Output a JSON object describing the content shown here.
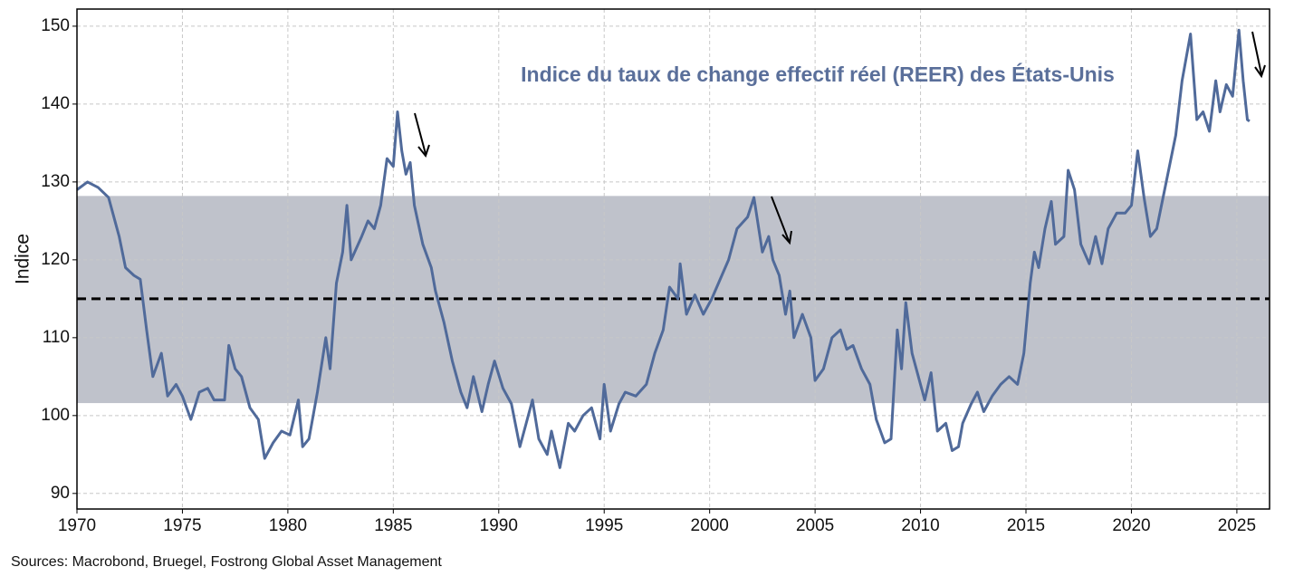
{
  "chart_data": {
    "type": "line",
    "title": "Indice du taux de change effectif réel (REER) des États-Unis",
    "y_label": "Indice",
    "source": "Sources: Macrobond, Bruegel, Fostrong Global Asset Management",
    "xlim": [
      1970,
      2026.55
    ],
    "xticks": [
      1970,
      1975,
      1980,
      1985,
      1990,
      1995,
      2000,
      2005,
      2010,
      2015,
      2020,
      2025
    ],
    "ylim": [
      88,
      152.2
    ],
    "yticks": [
      90,
      100,
      110,
      120,
      130,
      140,
      150
    ],
    "grid": true,
    "band": [
      101.6,
      128.2
    ],
    "band_color": "#bfc2cb",
    "reference_line": 115,
    "reference_color": "#000000",
    "series": [
      {
        "name": "REER",
        "color": "#506a9a",
        "x": [
          1970.0,
          1970.5,
          1971.0,
          1971.5,
          1972.0,
          1972.3,
          1972.7,
          1973.0,
          1973.3,
          1973.6,
          1974.0,
          1974.3,
          1974.7,
          1975.0,
          1975.4,
          1975.8,
          1976.2,
          1976.5,
          1977.0,
          1977.2,
          1977.5,
          1977.8,
          1978.2,
          1978.6,
          1978.9,
          1979.3,
          1979.7,
          1980.1,
          1980.5,
          1980.7,
          1981.0,
          1981.4,
          1981.8,
          1982.0,
          1982.3,
          1982.6,
          1982.8,
          1983.0,
          1983.5,
          1983.8,
          1984.1,
          1984.4,
          1984.7,
          1985.0,
          1985.2,
          1985.4,
          1985.6,
          1985.8,
          1986.0,
          1986.4,
          1986.8,
          1987.0,
          1987.4,
          1987.8,
          1988.2,
          1988.5,
          1988.8,
          1989.2,
          1989.5,
          1989.8,
          1990.2,
          1990.6,
          1991.0,
          1991.3,
          1991.6,
          1991.9,
          1992.3,
          1992.5,
          1992.9,
          1993.3,
          1993.6,
          1994.0,
          1994.4,
          1994.8,
          1995.0,
          1995.3,
          1995.7,
          1996.0,
          1996.5,
          1997.0,
          1997.4,
          1997.8,
          1998.1,
          1998.5,
          1998.6,
          1998.9,
          1999.3,
          1999.7,
          2000.1,
          2000.5,
          2000.9,
          2001.3,
          2001.8,
          2002.1,
          2002.5,
          2002.8,
          2003.0,
          2003.3,
          2003.6,
          2003.8,
          2004.0,
          2004.4,
          2004.8,
          2005.0,
          2005.4,
          2005.8,
          2006.2,
          2006.5,
          2006.8,
          2007.2,
          2007.6,
          2007.9,
          2008.3,
          2008.6,
          2008.9,
          2009.1,
          2009.3,
          2009.6,
          2009.9,
          2010.2,
          2010.5,
          2010.8,
          2011.2,
          2011.5,
          2011.8,
          2012.0,
          2012.4,
          2012.7,
          2013.0,
          2013.4,
          2013.8,
          2014.2,
          2014.6,
          2014.9,
          2015.2,
          2015.4,
          2015.6,
          2015.9,
          2016.2,
          2016.4,
          2016.8,
          2017.0,
          2017.3,
          2017.6,
          2018.0,
          2018.3,
          2018.6,
          2018.9,
          2019.3,
          2019.7,
          2020.0,
          2020.3,
          2020.6,
          2020.9,
          2021.2,
          2021.5,
          2021.8,
          2022.1,
          2022.4,
          2022.8,
          2023.1,
          2023.4,
          2023.7,
          2024.0,
          2024.2,
          2024.5,
          2024.8,
          2025.1,
          2025.3,
          2025.5,
          2025.6
        ],
        "values": [
          129,
          130,
          129.3,
          128,
          123,
          119,
          118,
          117.5,
          111,
          105,
          108,
          102.5,
          104,
          102.5,
          99.5,
          103,
          103.5,
          102,
          102,
          109,
          106,
          105,
          101,
          99.5,
          94.5,
          96.5,
          98,
          97.5,
          102,
          96,
          97,
          103,
          110,
          106,
          117,
          121,
          127,
          120,
          123,
          125,
          124,
          127,
          133,
          132,
          139,
          134,
          131,
          132.5,
          127,
          122,
          119,
          116,
          112,
          107,
          103,
          101,
          105,
          100.5,
          104,
          107,
          103.5,
          101.5,
          96,
          99,
          102,
          97,
          95,
          98,
          93.3,
          99,
          98,
          100,
          101,
          97,
          104,
          98,
          101.5,
          103,
          102.5,
          104,
          108,
          111,
          116.5,
          115,
          119.5,
          113,
          115.5,
          113,
          115,
          117.5,
          120,
          124,
          125.5,
          128,
          121,
          123,
          120,
          118,
          113,
          116,
          110,
          113,
          110,
          104.5,
          106,
          110,
          111,
          108.5,
          109,
          106,
          104,
          99.5,
          96.5,
          97,
          111,
          106,
          114.5,
          108,
          105,
          102,
          105.5,
          98,
          99,
          95.5,
          96,
          99,
          101.5,
          103,
          100.5,
          102.5,
          104,
          105,
          104,
          108,
          117,
          121,
          119,
          124,
          127.5,
          122,
          123,
          131.5,
          129,
          122,
          119.5,
          123,
          119.5,
          124,
          126,
          126,
          127,
          134,
          128,
          123,
          124,
          128,
          132,
          136,
          143,
          149,
          138,
          139,
          136.5,
          143,
          139,
          142.5,
          141,
          149.5,
          143,
          138,
          137.8
        ]
      }
    ]
  }
}
